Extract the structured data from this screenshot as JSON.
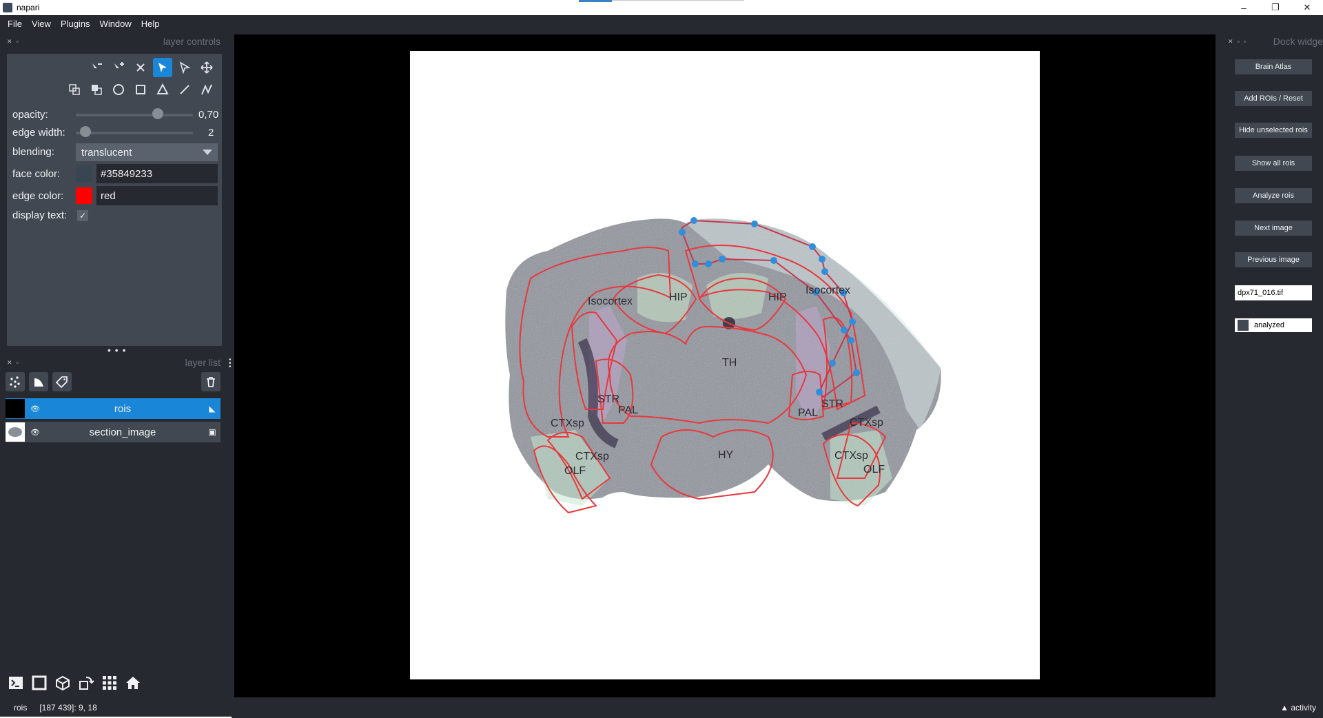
{
  "window": {
    "title": "napari",
    "minimize": "–",
    "restore": "❐",
    "close": "✕"
  },
  "menu": [
    "File",
    "View",
    "Plugins",
    "Window",
    "Help"
  ],
  "layer_controls": {
    "header": "layer controls",
    "opacity_label": "opacity:",
    "opacity_value": "0,70",
    "opacity_fraction": 0.7,
    "edge_width_label": "edge width:",
    "edge_width_value": "2",
    "blending_label": "blending:",
    "blending_value": "translucent",
    "face_color_label": "face color:",
    "face_color_value": "#35849233",
    "face_color_swatch": "#35849233",
    "edge_color_label": "edge color:",
    "edge_color_value": "red",
    "edge_color_swatch": "#ff0000",
    "display_text_label": "display text:",
    "display_text_checked": true,
    "active_tool": "select-vertices"
  },
  "layer_list": {
    "header": "layer list",
    "layers": [
      {
        "name": "rois",
        "selected": true,
        "type_icon": "shapes-icon"
      },
      {
        "name": "section_image",
        "selected": false,
        "type_icon": "image-icon"
      }
    ]
  },
  "dock": {
    "header": "Dock widge",
    "buttons": [
      "Brain Atlas",
      "Add ROIs / Reset",
      "Hide unselected rois",
      "Show all rois",
      "Analyze rois",
      "Next image",
      "Previous image"
    ],
    "file_field": "dpx71_016.tif",
    "analyzed_label": "analyzed"
  },
  "canvas": {
    "region_labels": [
      "Isocortex",
      "HIP",
      "HIP",
      "Isocortex",
      "TH",
      "STR",
      "PAL",
      "PAL",
      "STR",
      "CTXsp",
      "CTXsp",
      "CTXsp",
      "CTXsp",
      "OLF",
      "OLF",
      "HY"
    ],
    "edge_color": "#e8383d",
    "vertex_color": "#2f8fdc"
  },
  "status": {
    "layer": "rois",
    "coords": "[187 439]: 9, 18",
    "activity": "▲ activity"
  }
}
